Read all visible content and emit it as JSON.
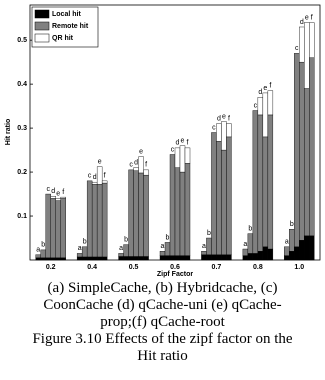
{
  "chart_data": {
    "type": "grouped-stacked-bar",
    "x_label": "Zipf Factor",
    "y_label": "Hit ratio",
    "categories": [
      "0.2",
      "0.4",
      "0.5",
      "0.6",
      "0.7",
      "0.8",
      "1.0"
    ],
    "bar_labels": [
      "a",
      "b",
      "c",
      "d",
      "e",
      "f"
    ],
    "ylim": [
      0,
      0.58
    ],
    "yticks": [
      0.1,
      0.2,
      0.3,
      0.4,
      0.5
    ],
    "legend": "upper-left",
    "series": [
      {
        "name": "Local hit",
        "color": "#000000",
        "values": [
          [
            0.005,
            0.005,
            0.005,
            0.005,
            0.005,
            0.005
          ],
          [
            0.007,
            0.007,
            0.007,
            0.007,
            0.007,
            0.007
          ],
          [
            0.008,
            0.008,
            0.008,
            0.008,
            0.008,
            0.008
          ],
          [
            0.01,
            0.01,
            0.01,
            0.01,
            0.01,
            0.01
          ],
          [
            0.012,
            0.012,
            0.012,
            0.012,
            0.012,
            0.012
          ],
          [
            0.01,
            0.015,
            0.015,
            0.02,
            0.03,
            0.025
          ],
          [
            0.01,
            0.02,
            0.03,
            0.045,
            0.055,
            0.055
          ]
        ]
      },
      {
        "name": "Remote hit",
        "color": "#808080",
        "values": [
          [
            0.007,
            0.018,
            0.145,
            0.135,
            0.13,
            0.135
          ],
          [
            0.008,
            0.023,
            0.173,
            0.165,
            0.165,
            0.168
          ],
          [
            0.007,
            0.027,
            0.197,
            0.195,
            0.19,
            0.185
          ],
          [
            0.01,
            0.03,
            0.23,
            0.2,
            0.19,
            0.21
          ],
          [
            0.008,
            0.038,
            0.278,
            0.258,
            0.238,
            0.268
          ],
          [
            0.015,
            0.045,
            0.325,
            0.31,
            0.25,
            0.305
          ],
          [
            0.02,
            0.05,
            0.44,
            0.405,
            0.335,
            0.405
          ]
        ]
      },
      {
        "name": "QR hit",
        "color": "#ffffff",
        "values": [
          [
            0,
            0,
            0,
            0.005,
            0.005,
            0.003
          ],
          [
            0,
            0,
            0,
            0.005,
            0.04,
            0.005
          ],
          [
            0,
            0,
            0,
            0.007,
            0.037,
            0.012
          ],
          [
            0,
            0,
            0,
            0.045,
            0.06,
            0.035
          ],
          [
            0,
            0,
            0,
            0.04,
            0.065,
            0.03
          ],
          [
            0,
            0,
            0,
            0.04,
            0.1,
            0.055
          ],
          [
            0,
            0,
            0,
            0.08,
            0.15,
            0.08
          ]
        ]
      }
    ]
  },
  "caption": [
    "(a) SimpleCache, (b) Hybridcache, (c)",
    "CoonCache (d) qCache-uni (e) qCache-",
    "prop;(f) qCache-root",
    "Figure 3.10 Effects of the zipf factor on the",
    "Hit ratio"
  ]
}
